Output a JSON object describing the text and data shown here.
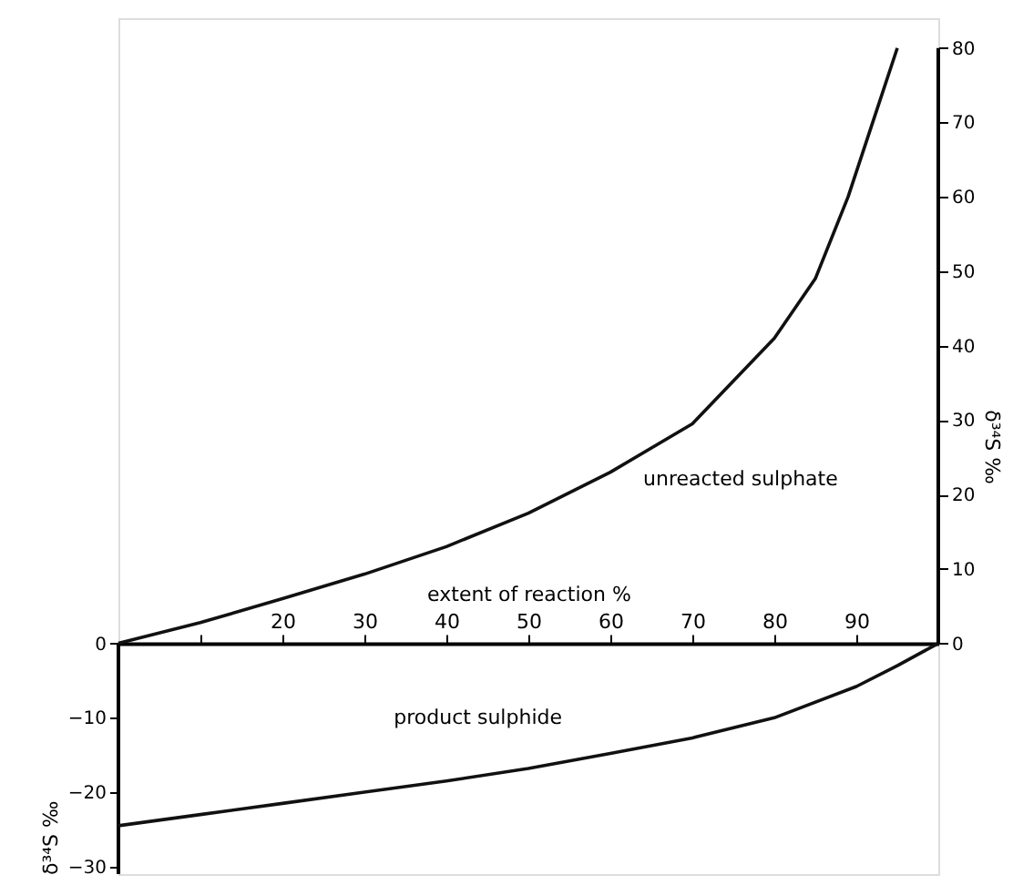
{
  "chart_data": {
    "type": "line",
    "xlabel": "extent of reaction %",
    "ylabel": "δ³⁴S ‰",
    "y2label": "δ³⁴S ‰",
    "xlim": [
      0,
      100
    ],
    "xticks": [
      {
        "value": 10,
        "label": null
      },
      20,
      30,
      40,
      50,
      60,
      70,
      80,
      90
    ],
    "ylim": [
      -31,
      84
    ],
    "yticks": [
      0,
      -10,
      -20,
      -30
    ],
    "y2lim": [
      -31,
      84
    ],
    "y2ticks": [
      0,
      10,
      20,
      30,
      40,
      50,
      60,
      70,
      80
    ],
    "grid": false,
    "line_style": "solid",
    "marker": "none",
    "series": [
      {
        "color": "#111111",
        "x": [
          0,
          10,
          20,
          30,
          40,
          50,
          60,
          70,
          80,
          85,
          89,
          92,
          95
        ],
        "values": [
          0,
          2.8,
          6,
          9.3,
          13,
          17.5,
          23,
          29.5,
          41,
          49,
          60,
          70,
          80
        ]
      },
      {
        "color": "#111111",
        "x": [
          0,
          10,
          20,
          30,
          40,
          50,
          60,
          70,
          80,
          90,
          95,
          100
        ],
        "values": [
          -24.5,
          -23,
          -21.5,
          -20,
          -18.5,
          -16.8,
          -14.8,
          -12.7,
          -10,
          -5.8,
          -3,
          0
        ]
      }
    ],
    "annotations": [
      {
        "text": "unreacted sulphate",
        "x": 60,
        "y": 23
      },
      {
        "text": "product sulphide",
        "x": 59,
        "y": -15
      }
    ]
  }
}
